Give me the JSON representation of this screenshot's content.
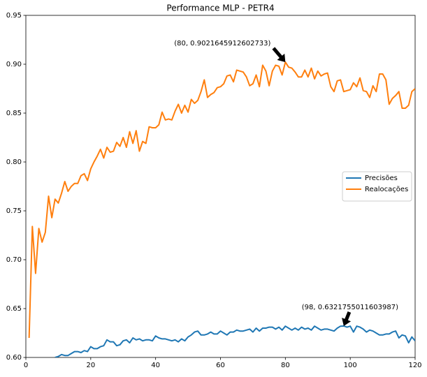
{
  "chart_data": {
    "type": "line",
    "title": "Performance MLP - PETR4",
    "x": [
      1,
      2,
      3,
      4,
      5,
      6,
      7,
      8,
      9,
      10,
      11,
      12,
      13,
      14,
      15,
      16,
      17,
      18,
      19,
      20,
      21,
      22,
      23,
      24,
      25,
      26,
      27,
      28,
      29,
      30,
      31,
      32,
      33,
      34,
      35,
      36,
      37,
      38,
      39,
      40,
      41,
      42,
      43,
      44,
      45,
      46,
      47,
      48,
      49,
      50,
      51,
      52,
      53,
      54,
      55,
      56,
      57,
      58,
      59,
      60,
      61,
      62,
      63,
      64,
      65,
      66,
      67,
      68,
      69,
      70,
      71,
      72,
      73,
      74,
      75,
      76,
      77,
      78,
      79,
      80,
      81,
      82,
      83,
      84,
      85,
      86,
      87,
      88,
      89,
      90,
      91,
      92,
      93,
      94,
      95,
      96,
      97,
      98,
      99,
      100,
      101,
      102,
      103,
      104,
      105,
      106,
      107,
      108,
      109,
      110,
      111,
      112,
      113,
      114,
      115,
      116,
      117,
      118,
      119,
      120
    ],
    "series": [
      {
        "name": "Precisões",
        "color": "#1f77b4",
        "values": [
          null,
          null,
          null,
          null,
          null,
          null,
          null,
          null,
          0.6,
          0.601,
          0.603,
          0.602,
          0.602,
          0.604,
          0.606,
          0.606,
          0.605,
          0.607,
          0.606,
          0.611,
          0.609,
          0.609,
          0.611,
          0.612,
          0.618,
          0.616,
          0.616,
          0.612,
          0.613,
          0.617,
          0.618,
          0.615,
          0.62,
          0.618,
          0.619,
          0.617,
          0.618,
          0.618,
          0.617,
          0.622,
          0.62,
          0.619,
          0.619,
          0.618,
          0.617,
          0.618,
          0.616,
          0.619,
          0.617,
          0.621,
          0.623,
          0.626,
          0.627,
          0.623,
          0.623,
          0.624,
          0.626,
          0.624,
          0.624,
          0.627,
          0.625,
          0.623,
          0.626,
          0.626,
          0.628,
          0.627,
          0.627,
          0.628,
          0.629,
          0.626,
          0.63,
          0.627,
          0.63,
          0.63,
          0.631,
          0.631,
          0.629,
          0.631,
          0.628,
          0.632,
          0.63,
          0.628,
          0.63,
          0.628,
          0.631,
          0.629,
          0.63,
          0.628,
          0.632,
          0.63,
          0.628,
          0.629,
          0.629,
          0.628,
          0.627,
          0.63,
          0.632,
          0.6321755011603987,
          0.631,
          0.632,
          0.626,
          0.632,
          0.631,
          0.629,
          0.626,
          0.628,
          0.627,
          0.625,
          0.623,
          0.623,
          0.624,
          0.624,
          0.626,
          0.627,
          0.62,
          0.623,
          0.622,
          0.615,
          0.621,
          0.617
        ]
      },
      {
        "name": "Realocações",
        "color": "#ff7f0e",
        "values": [
          0.62,
          0.734,
          0.686,
          0.732,
          0.718,
          0.728,
          0.765,
          0.743,
          0.762,
          0.758,
          0.768,
          0.78,
          0.77,
          0.775,
          0.778,
          0.778,
          0.786,
          0.788,
          0.781,
          0.793,
          0.8,
          0.806,
          0.813,
          0.804,
          0.815,
          0.81,
          0.811,
          0.82,
          0.816,
          0.825,
          0.815,
          0.831,
          0.819,
          0.832,
          0.811,
          0.821,
          0.819,
          0.836,
          0.835,
          0.835,
          0.838,
          0.851,
          0.843,
          0.844,
          0.843,
          0.852,
          0.859,
          0.85,
          0.858,
          0.851,
          0.864,
          0.86,
          0.863,
          0.872,
          0.884,
          0.866,
          0.869,
          0.871,
          0.876,
          0.877,
          0.88,
          0.888,
          0.889,
          0.882,
          0.894,
          0.893,
          0.892,
          0.887,
          0.878,
          0.88,
          0.889,
          0.877,
          0.899,
          0.893,
          0.878,
          0.893,
          0.899,
          0.898,
          0.889,
          0.9021645912602733,
          0.897,
          0.896,
          0.892,
          0.887,
          0.887,
          0.894,
          0.887,
          0.896,
          0.885,
          0.893,
          0.888,
          0.89,
          0.891,
          0.877,
          0.872,
          0.883,
          0.884,
          0.872,
          0.873,
          0.874,
          0.881,
          0.877,
          0.886,
          0.873,
          0.872,
          0.866,
          0.878,
          0.872,
          0.89,
          0.89,
          0.884,
          0.859,
          0.865,
          0.868,
          0.872,
          0.855,
          0.855,
          0.858,
          0.872,
          0.875
        ]
      }
    ],
    "annotations": [
      {
        "text": "(80, 0.9021645912602733)",
        "x": 80,
        "y": 0.9021645912602733
      },
      {
        "text": "(98, 0.6321755011603987)",
        "x": 98,
        "y": 0.6321755011603987
      }
    ],
    "xlim": [
      0,
      120
    ],
    "xticks": [
      0,
      20,
      40,
      60,
      80,
      100,
      120
    ],
    "ylim": [
      0.6,
      0.95
    ],
    "yticks": [
      {
        "value": 0.6,
        "label": "0.60"
      },
      0.65,
      {
        "value": 0.7,
        "label": "0.70"
      },
      0.75,
      {
        "value": 0.8,
        "label": "0.80"
      },
      0.85,
      {
        "value": 0.9,
        "label": "0.90"
      },
      0.95
    ],
    "grid": false,
    "legend": "center right"
  }
}
